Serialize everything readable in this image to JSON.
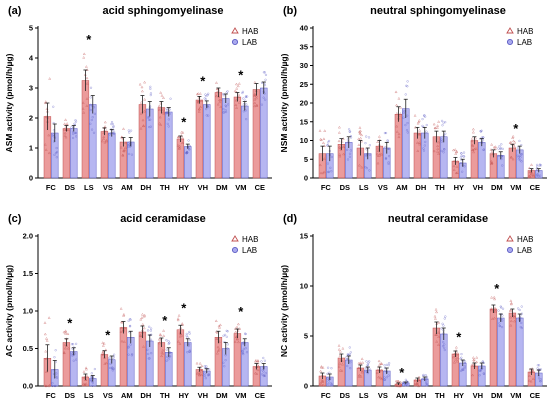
{
  "colors": {
    "hab": "#e88a8a",
    "hab_edge": "#c05050",
    "lab": "#a9a9ee",
    "lab_edge": "#5c5cc4"
  },
  "legend": [
    "HAB",
    "LAB"
  ],
  "chart_data": [
    {
      "type": "bar",
      "letter": "(a)",
      "title": "acid sphingomyelinase",
      "ylabel": "ASM activity  (pmol/h/µg)",
      "ylim": [
        0,
        5
      ],
      "yticks": [
        0,
        1,
        2,
        3,
        4,
        5
      ],
      "categories": [
        "FC",
        "DS",
        "LS",
        "VS",
        "AM",
        "DH",
        "TH",
        "HY",
        "VH",
        "DM",
        "VM",
        "CE"
      ],
      "series": [
        {
          "name": "HAB",
          "values": [
            2.05,
            1.65,
            3.25,
            1.55,
            1.2,
            2.45,
            2.35,
            1.3,
            2.6,
            2.85,
            2.7,
            2.95
          ],
          "errors": [
            0.45,
            0.1,
            0.35,
            0.12,
            0.15,
            0.3,
            0.2,
            0.1,
            0.12,
            0.15,
            0.15,
            0.2
          ]
        },
        {
          "name": "LAB",
          "values": [
            1.5,
            1.65,
            2.45,
            1.5,
            1.2,
            2.3,
            2.2,
            1.05,
            2.45,
            2.65,
            2.4,
            3.0
          ],
          "errors": [
            0.3,
            0.1,
            0.3,
            0.12,
            0.15,
            0.25,
            0.15,
            0.08,
            0.12,
            0.15,
            0.15,
            0.2
          ]
        }
      ],
      "significant": [
        "LS",
        "HY",
        "VH",
        "VM"
      ]
    },
    {
      "type": "bar",
      "letter": "(b)",
      "title": "neutral sphingomyelinase",
      "ylabel": "NSM activity  (pmol/h/µg)",
      "ylim": [
        0,
        40
      ],
      "yticks": [
        0,
        5,
        10,
        15,
        20,
        25,
        30,
        35,
        40
      ],
      "categories": [
        "FC",
        "DS",
        "LS",
        "VS",
        "AM",
        "DH",
        "TH",
        "HY",
        "VH",
        "DM",
        "VM",
        "CE"
      ],
      "series": [
        {
          "name": "HAB",
          "values": [
            6.5,
            9.0,
            8.0,
            8.5,
            17.0,
            12.0,
            11.0,
            4.5,
            10.0,
            6.5,
            8.0,
            2.0
          ],
          "errors": [
            2.0,
            1.5,
            2.0,
            1.5,
            2.0,
            1.5,
            1.5,
            1.0,
            1.0,
            1.0,
            1.0,
            0.5
          ]
        },
        {
          "name": "LAB",
          "values": [
            6.5,
            9.5,
            6.5,
            8.0,
            18.5,
            12.0,
            11.0,
            4.0,
            9.5,
            6.0,
            7.5,
            2.0
          ],
          "errors": [
            2.0,
            1.5,
            1.5,
            1.5,
            2.5,
            1.5,
            1.5,
            1.0,
            1.0,
            1.0,
            1.0,
            0.5
          ]
        }
      ],
      "significant": [
        "VM"
      ]
    },
    {
      "type": "bar",
      "letter": "(c)",
      "title": "acid ceramidase",
      "ylabel": "AC activity  (pmol/h/µg)",
      "ylim": [
        0,
        2.0
      ],
      "yticks": [
        0.0,
        0.5,
        1.0,
        1.5,
        2.0
      ],
      "categories": [
        "FC",
        "DS",
        "LS",
        "VS",
        "AM",
        "DH",
        "TH",
        "HY",
        "VH",
        "DM",
        "VM",
        "CE"
      ],
      "series": [
        {
          "name": "HAB",
          "values": [
            0.37,
            0.58,
            0.12,
            0.42,
            0.78,
            0.72,
            0.58,
            0.75,
            0.22,
            0.65,
            0.7,
            0.26
          ],
          "errors": [
            0.18,
            0.05,
            0.04,
            0.05,
            0.08,
            0.08,
            0.06,
            0.06,
            0.03,
            0.08,
            0.06,
            0.04
          ]
        },
        {
          "name": "LAB",
          "values": [
            0.22,
            0.46,
            0.1,
            0.35,
            0.65,
            0.6,
            0.45,
            0.58,
            0.2,
            0.5,
            0.58,
            0.26
          ],
          "errors": [
            0.12,
            0.05,
            0.04,
            0.05,
            0.08,
            0.08,
            0.06,
            0.05,
            0.03,
            0.08,
            0.05,
            0.04
          ]
        }
      ],
      "significant": [
        "DS",
        "VS",
        "TH",
        "HY",
        "VM"
      ]
    },
    {
      "type": "bar",
      "letter": "(d)",
      "title": "neutral ceramidase",
      "ylabel": "NC activity  (pmol/h/µg)",
      "ylim": [
        0,
        15
      ],
      "yticks": [
        0,
        5,
        10,
        15
      ],
      "categories": [
        "FC",
        "DS",
        "LS",
        "VS",
        "AM",
        "DH",
        "TH",
        "HY",
        "VH",
        "DM",
        "VM",
        "CE"
      ],
      "series": [
        {
          "name": "HAB",
          "values": [
            1.0,
            2.8,
            1.8,
            1.6,
            0.2,
            0.6,
            5.8,
            3.2,
            2.0,
            7.7,
            7.3,
            1.4
          ],
          "errors": [
            0.3,
            0.4,
            0.3,
            0.3,
            0.1,
            0.2,
            0.6,
            0.3,
            0.3,
            0.4,
            0.4,
            0.3
          ]
        },
        {
          "name": "LAB",
          "values": [
            0.9,
            2.6,
            1.6,
            1.5,
            0.3,
            0.7,
            5.2,
            2.3,
            2.0,
            6.8,
            6.8,
            1.3
          ],
          "errors": [
            0.3,
            0.4,
            0.3,
            0.3,
            0.1,
            0.2,
            0.6,
            0.3,
            0.3,
            0.4,
            0.4,
            0.3
          ]
        }
      ],
      "significant": [
        "AM",
        "HY",
        "DM"
      ]
    }
  ]
}
